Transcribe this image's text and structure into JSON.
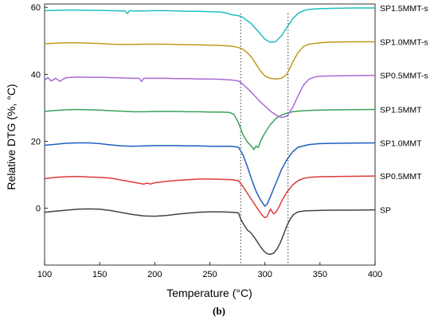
{
  "caption": "(b)",
  "chart_data": {
    "type": "line",
    "xlabel": "Temperature (°C)",
    "ylabel": "Relative DTG (%, °C)",
    "xlim": [
      100,
      400
    ],
    "ylim": [
      -17,
      61
    ],
    "xticks": [
      100,
      150,
      200,
      250,
      300,
      350,
      400
    ],
    "yticks": [
      0,
      20,
      40,
      60
    ],
    "reference_lines_x": [
      278,
      321
    ],
    "grid": false,
    "series": [
      {
        "name": "SP",
        "color": "#444444",
        "x": [
          100,
          110,
          120,
          130,
          140,
          150,
          160,
          170,
          180,
          190,
          200,
          210,
          220,
          230,
          240,
          250,
          260,
          270,
          276,
          278,
          281,
          284,
          287,
          290,
          293,
          296,
          299,
          302,
          305,
          308,
          311,
          314,
          317,
          320,
          323,
          326,
          330,
          336,
          345,
          360,
          380,
          400
        ],
        "y": [
          -1.2,
          -0.9,
          -0.6,
          -0.3,
          -0.2,
          -0.3,
          -0.7,
          -1.3,
          -1.9,
          -2.3,
          -2.4,
          -2.2,
          -1.8,
          -1.5,
          -1.2,
          -1.1,
          -1.1,
          -1.2,
          -1.4,
          -3.2,
          -5.0,
          -6.5,
          -7.3,
          -8.5,
          -10,
          -11.5,
          -12.8,
          -13.6,
          -13.8,
          -13.4,
          -12.2,
          -10.3,
          -7.8,
          -5.2,
          -3.2,
          -1.9,
          -1.1,
          -0.8,
          -0.7,
          -0.6,
          -0.6,
          -0.5
        ]
      },
      {
        "name": "SP0.5MMT",
        "color": "#dd3b3b",
        "x": [
          100,
          110,
          120,
          130,
          140,
          150,
          160,
          170,
          180,
          185,
          190,
          193,
          196,
          200,
          210,
          220,
          230,
          240,
          250,
          260,
          270,
          276,
          280,
          284,
          288,
          292,
          295,
          298,
          300,
          302,
          304,
          305,
          306,
          308,
          310,
          313,
          316,
          320,
          325,
          330,
          335,
          340,
          350,
          370,
          400
        ],
        "y": [
          8.8,
          9.2,
          9.4,
          9.5,
          9.3,
          9.2,
          9.0,
          8.4,
          7.8,
          7.5,
          7.2,
          7.5,
          7.2,
          7.6,
          8.0,
          8.3,
          8.5,
          8.7,
          8.7,
          8.6,
          8.5,
          8.2,
          6.5,
          4.5,
          2.5,
          0.5,
          -1.0,
          -2.3,
          -2.8,
          -2.5,
          -1.0,
          -0.2,
          -0.8,
          -1.7,
          -1.2,
          0.5,
          2.6,
          4.8,
          6.9,
          8.2,
          8.9,
          9.2,
          9.4,
          9.5,
          9.6
        ]
      },
      {
        "name": "SP1.0MMT",
        "color": "#1f5fbf",
        "x": [
          100,
          110,
          120,
          130,
          140,
          150,
          160,
          170,
          180,
          190,
          200,
          210,
          220,
          230,
          240,
          250,
          260,
          270,
          276,
          280,
          284,
          288,
          292,
          296,
          299,
          300,
          302,
          305,
          310,
          315,
          320,
          325,
          330,
          340,
          350,
          370,
          400
        ],
        "y": [
          18.8,
          19.1,
          19.4,
          19.5,
          19.5,
          19.3,
          18.9,
          18.6,
          18.5,
          18.6,
          18.7,
          18.7,
          18.7,
          18.6,
          18.6,
          18.5,
          18.5,
          18.5,
          18.2,
          16.0,
          12.5,
          8.5,
          5.0,
          2.5,
          1.0,
          0.6,
          1.2,
          3.5,
          7.5,
          11.5,
          14.5,
          16.8,
          18.2,
          19.0,
          19.3,
          19.4,
          19.5
        ]
      },
      {
        "name": "SP1.5MMT",
        "color": "#3aa35a",
        "x": [
          100,
          110,
          120,
          130,
          140,
          150,
          160,
          170,
          180,
          190,
          200,
          210,
          220,
          230,
          240,
          250,
          260,
          268,
          272,
          276,
          280,
          284,
          288,
          290,
          292,
          294,
          296,
          300,
          305,
          310,
          315,
          320,
          325,
          330,
          340,
          350,
          370,
          400
        ],
        "y": [
          28.9,
          29.2,
          29.4,
          29.5,
          29.4,
          29.3,
          29.1,
          29.0,
          28.8,
          28.8,
          28.9,
          28.9,
          28.9,
          28.8,
          28.8,
          28.7,
          28.7,
          28.6,
          28.0,
          25.5,
          22.0,
          19.8,
          18.4,
          17.5,
          18.6,
          18.1,
          20.0,
          22.5,
          25.0,
          26.8,
          27.8,
          28.4,
          28.8,
          29.0,
          29.2,
          29.3,
          29.4,
          29.5
        ]
      },
      {
        "name": "SP0.5MMT-s",
        "color": "#a86ad4",
        "x": [
          100,
          103,
          106,
          110,
          114,
          117,
          120,
          130,
          140,
          150,
          160,
          170,
          180,
          186,
          188,
          190,
          200,
          210,
          220,
          230,
          240,
          250,
          260,
          270,
          276,
          280,
          285,
          290,
          295,
          300,
          305,
          310,
          315,
          320,
          325,
          330,
          335,
          340,
          345,
          350,
          360,
          380,
          400
        ],
        "y": [
          38.2,
          39.0,
          38.0,
          38.8,
          37.9,
          38.6,
          39.0,
          39.2,
          39.1,
          39.1,
          39.0,
          38.9,
          38.8,
          38.8,
          37.8,
          38.8,
          38.8,
          38.8,
          38.7,
          38.7,
          38.6,
          38.6,
          38.5,
          38.3,
          38.0,
          37.0,
          35.5,
          33.8,
          32.0,
          30.5,
          29.0,
          27.8,
          27.1,
          27.5,
          30.0,
          33.5,
          36.8,
          38.5,
          39.2,
          39.4,
          39.5,
          39.6,
          39.7
        ]
      },
      {
        "name": "SP1.0MMT-s",
        "color": "#c09a1e",
        "x": [
          100,
          110,
          120,
          130,
          140,
          150,
          160,
          170,
          180,
          190,
          200,
          210,
          220,
          230,
          240,
          250,
          260,
          270,
          276,
          280,
          284,
          288,
          292,
          296,
          300,
          305,
          310,
          315,
          320,
          325,
          330,
          335,
          340,
          350,
          360,
          380,
          400
        ],
        "y": [
          49.1,
          49.3,
          49.4,
          49.4,
          49.3,
          49.2,
          49.0,
          48.9,
          48.9,
          49.0,
          49.0,
          49.0,
          48.9,
          48.8,
          48.8,
          48.7,
          48.6,
          48.4,
          48.0,
          47.5,
          46.5,
          45.0,
          43.0,
          41.0,
          39.5,
          38.8,
          38.6,
          38.8,
          40.0,
          43.5,
          46.5,
          48.3,
          49.0,
          49.4,
          49.6,
          49.7,
          49.7
        ]
      },
      {
        "name": "SP1.5MMT-s",
        "color": "#1fbfbf",
        "x": [
          100,
          110,
          120,
          130,
          140,
          150,
          160,
          170,
          173,
          175,
          177,
          180,
          190,
          200,
          210,
          220,
          230,
          240,
          250,
          260,
          265,
          270,
          276,
          280,
          284,
          288,
          292,
          296,
          300,
          305,
          310,
          315,
          320,
          325,
          330,
          335,
          340,
          350,
          360,
          380,
          400
        ],
        "y": [
          59.0,
          59.1,
          59.2,
          59.2,
          59.1,
          59.1,
          59.0,
          58.9,
          59.0,
          58.1,
          59.0,
          58.9,
          58.9,
          59.0,
          59.0,
          58.9,
          58.8,
          58.8,
          58.7,
          58.6,
          58.3,
          57.8,
          57.5,
          57.0,
          56.0,
          55.0,
          53.5,
          52.0,
          50.5,
          49.5,
          49.8,
          51.5,
          54.0,
          56.5,
          58.2,
          59.0,
          59.4,
          59.6,
          59.7,
          59.8,
          59.8
        ]
      }
    ]
  }
}
